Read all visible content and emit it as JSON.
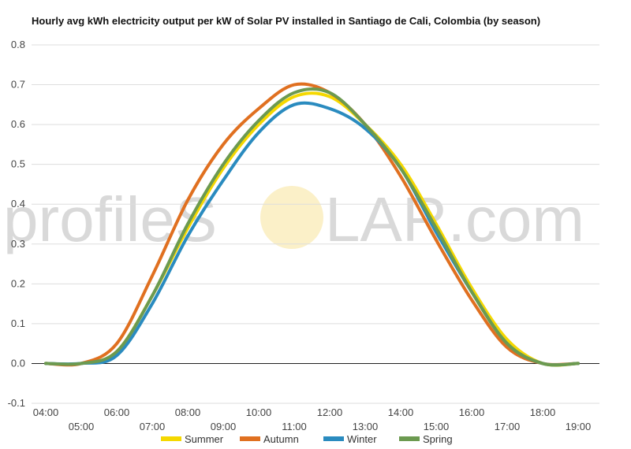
{
  "watermark": {
    "left": "profileS",
    "right": "LAR.com"
  },
  "chart_data": {
    "type": "line",
    "title": "Hourly avg kWh electricity output per kW of Solar PV installed in Santiago de Cali, Colombia (by season)",
    "xlabel": "",
    "ylabel": "",
    "x_ticks": [
      "04:00",
      "05:00",
      "06:00",
      "07:00",
      "08:00",
      "09:00",
      "10:00",
      "11:00",
      "12:00",
      "13:00",
      "14:00",
      "15:00",
      "16:00",
      "17:00",
      "18:00",
      "19:00"
    ],
    "y_ticks": [
      "-0.1",
      "0.0",
      "0.1",
      "0.2",
      "0.3",
      "0.4",
      "0.5",
      "0.6",
      "0.7",
      "0.8"
    ],
    "ylim": [
      -0.1,
      0.8
    ],
    "grid": true,
    "legend_position": "bottom",
    "series": [
      {
        "name": "Summer",
        "color": "#f5d800",
        "x": [
          4,
          5,
          6,
          7,
          8,
          9,
          10,
          11,
          12,
          13,
          14,
          15,
          16,
          17,
          18,
          19
        ],
        "values": [
          0.0,
          0.0,
          0.03,
          0.17,
          0.34,
          0.49,
          0.6,
          0.67,
          0.67,
          0.6,
          0.5,
          0.35,
          0.19,
          0.06,
          0.0,
          0.0
        ]
      },
      {
        "name": "Autumn",
        "color": "#e07020",
        "x": [
          4,
          5,
          6,
          7,
          8,
          9,
          10,
          11,
          12,
          13,
          14,
          15,
          16,
          17,
          18,
          19
        ],
        "values": [
          0.0,
          0.0,
          0.05,
          0.22,
          0.41,
          0.55,
          0.64,
          0.7,
          0.68,
          0.6,
          0.47,
          0.31,
          0.16,
          0.04,
          0.0,
          0.0
        ]
      },
      {
        "name": "Winter",
        "color": "#2a8bbf",
        "x": [
          4,
          5,
          6,
          7,
          8,
          9,
          10,
          11,
          12,
          13,
          14,
          15,
          16,
          17,
          18,
          19
        ],
        "values": [
          0.0,
          0.0,
          0.02,
          0.15,
          0.32,
          0.46,
          0.58,
          0.65,
          0.64,
          0.59,
          0.49,
          0.33,
          0.18,
          0.05,
          0.0,
          0.0
        ]
      },
      {
        "name": "Spring",
        "color": "#6c9a50",
        "x": [
          4,
          5,
          6,
          7,
          8,
          9,
          10,
          11,
          12,
          13,
          14,
          15,
          16,
          17,
          18,
          19
        ],
        "values": [
          0.0,
          0.0,
          0.03,
          0.17,
          0.35,
          0.5,
          0.61,
          0.68,
          0.68,
          0.6,
          0.49,
          0.34,
          0.18,
          0.05,
          0.0,
          0.0
        ]
      }
    ]
  }
}
